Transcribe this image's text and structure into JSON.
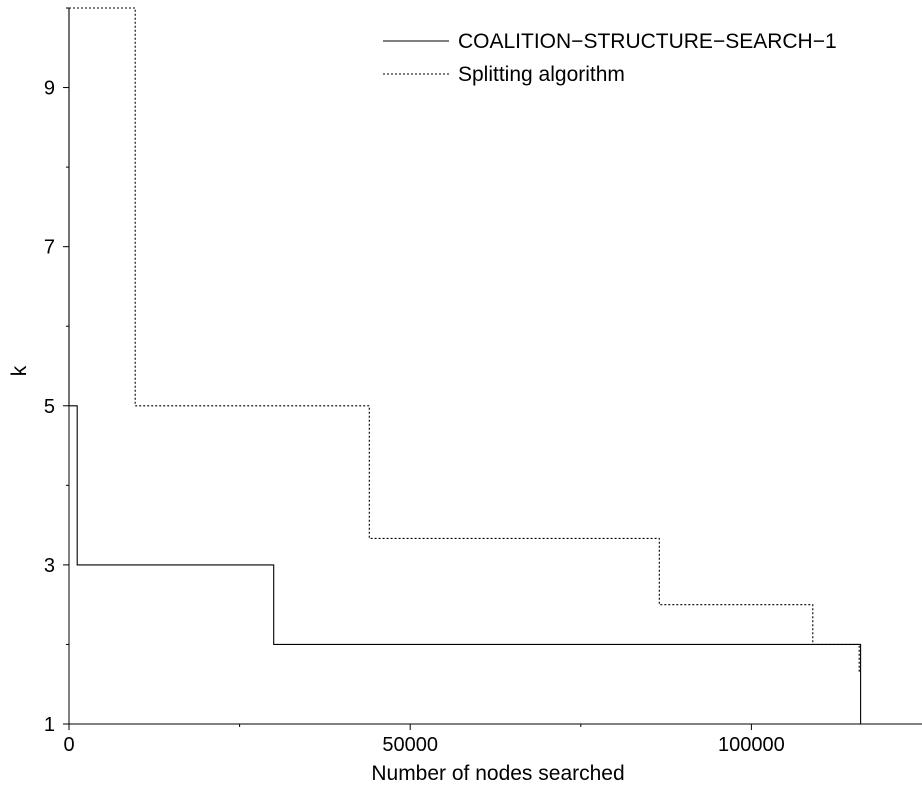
{
  "chart_data": {
    "type": "line",
    "step": true,
    "xlabel": "Number of nodes searched",
    "ylabel": "k",
    "xlim": [
      0,
      125000
    ],
    "ylim": [
      1,
      10
    ],
    "x_ticks_major": [
      0,
      50000,
      100000
    ],
    "x_tick_labels": [
      "0",
      "50000",
      "100000"
    ],
    "x_ticks_minor": [
      25000,
      75000
    ],
    "y_ticks_major": [
      1,
      3,
      5,
      7,
      9
    ],
    "y_tick_labels": [
      "1",
      "3",
      "5",
      "7",
      "9"
    ],
    "y_ticks_minor": [
      2,
      4,
      6,
      8,
      10
    ],
    "legend": "top-right",
    "series": [
      {
        "name": "COALITION−STRUCTURE−SEARCH−1",
        "style": "solid",
        "color": "#000000",
        "points": [
          [
            0,
            10
          ],
          [
            0,
            5
          ],
          [
            1200,
            5
          ],
          [
            1200,
            3
          ],
          [
            30000,
            3
          ],
          [
            30000,
            2
          ],
          [
            116000,
            2
          ],
          [
            116000,
            1
          ]
        ]
      },
      {
        "name": "Splitting algorithm",
        "style": "dotted",
        "color": "#000000",
        "points": [
          [
            0,
            10
          ],
          [
            9700,
            10
          ],
          [
            9700,
            5
          ],
          [
            44000,
            5
          ],
          [
            44000,
            3.333
          ],
          [
            86500,
            3.333
          ],
          [
            86500,
            2.5
          ],
          [
            109000,
            2.5
          ],
          [
            109000,
            2
          ],
          [
            115800,
            2
          ],
          [
            115800,
            1.667
          ],
          [
            116000,
            1.667
          ]
        ]
      }
    ]
  }
}
